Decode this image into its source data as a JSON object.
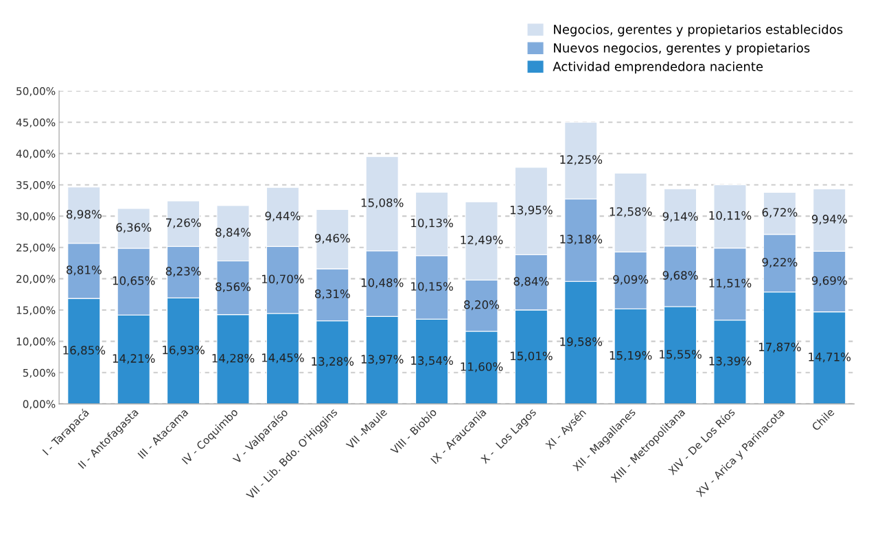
{
  "chart_data": {
    "type": "bar",
    "stacked": true,
    "categories": [
      "I - Tarapacá",
      "II - Antofagasta",
      "III - Atacama",
      "IV - Coquimbo",
      "V - Valparaíso",
      "VII - Lib. Bdo. O'Higgins",
      "VII -Maule",
      "VIII - Biobío",
      "IX - Araucanía",
      "X -  Los Lagos",
      "XI - Aysén",
      "XII - Magallanes",
      "XIII - Metropolitana",
      "XIV - De Los Ríos",
      "XV - Arica y Parinacota",
      "Chile"
    ],
    "series": [
      {
        "name": "Actividad emprendedora naciente",
        "color": "#2e8fd0",
        "values": [
          16.85,
          14.21,
          16.93,
          14.28,
          14.45,
          13.28,
          13.97,
          13.54,
          11.6,
          15.01,
          19.58,
          15.19,
          15.55,
          13.39,
          17.87,
          14.71
        ],
        "value_labels": [
          "16,85%",
          "14,21%",
          "16,93%",
          "14,28%",
          "14,45%",
          "13,28%",
          "13,97%",
          "13,54%",
          "11,60%",
          "15,01%",
          "19,58%",
          "15,19%",
          "15,55%",
          "13,39%",
          "17,87%",
          "14,71%"
        ]
      },
      {
        "name": "Nuevos negocios, gerentes y propietarios",
        "color": "#80abdc",
        "values": [
          8.81,
          10.65,
          8.23,
          8.56,
          10.7,
          8.31,
          10.48,
          10.15,
          8.2,
          8.84,
          13.18,
          9.09,
          9.68,
          11.51,
          9.22,
          9.69
        ],
        "value_labels": [
          "8,81%",
          "10,65%",
          "8,23%",
          "8,56%",
          "10,70%",
          "8,31%",
          "10,48%",
          "10,15%",
          "8,20%",
          "8,84%",
          "13,18%",
          "9,09%",
          "9,68%",
          "11,51%",
          "9,22%",
          "9,69%"
        ]
      },
      {
        "name": "Negocios, gerentes y propietarios establecidos",
        "color": "#d3e0f0",
        "values": [
          8.98,
          6.36,
          7.26,
          8.84,
          9.44,
          9.46,
          15.08,
          10.13,
          12.49,
          13.95,
          12.25,
          12.58,
          9.14,
          10.11,
          6.72,
          9.94
        ],
        "value_labels": [
          "8,98%",
          "6,36%",
          "7,26%",
          "8,84%",
          "9,44%",
          "9,46%",
          "15,08%",
          "10,13%",
          "12,49%",
          "13,95%",
          "12,25%",
          "12,58%",
          "9,14%",
          "10,11%",
          "6,72%",
          "9,94%"
        ]
      }
    ],
    "ylim": [
      0,
      50
    ],
    "yticks": [
      {
        "value": 0,
        "label": "0,00%"
      },
      {
        "value": 5,
        "label": "5,00%"
      },
      {
        "value": 10,
        "label": "10,00%"
      },
      {
        "value": 15,
        "label": "15,00%"
      },
      {
        "value": 20,
        "label": "20,00%"
      },
      {
        "value": 25,
        "label": "25,00%"
      },
      {
        "value": 30,
        "label": "30,00%"
      },
      {
        "value": 35,
        "label": "35,00%"
      },
      {
        "value": 40,
        "label": "40,00%"
      },
      {
        "value": 45,
        "label": "45,00%"
      },
      {
        "value": 50,
        "label": "50,00%"
      }
    ],
    "grid": "y",
    "legend": "top right"
  }
}
